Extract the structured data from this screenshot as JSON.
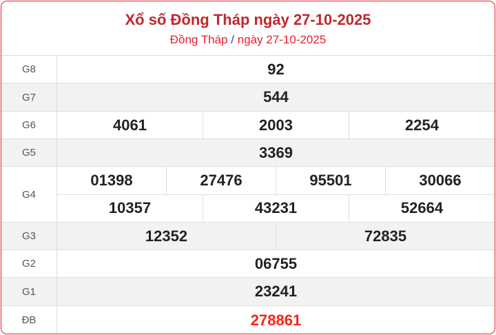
{
  "header": {
    "title": "Xổ số Đồng Tháp ngày 27-10-2025",
    "breadcrumb": {
      "province": "Đồng Tháp",
      "separator": "/",
      "date": "ngày 27-10-2025"
    }
  },
  "prizes": [
    {
      "label": "G8",
      "rows": [
        [
          "92"
        ]
      ]
    },
    {
      "label": "G7",
      "rows": [
        [
          "544"
        ]
      ]
    },
    {
      "label": "G6",
      "rows": [
        [
          "4061",
          "2003",
          "2254"
        ]
      ]
    },
    {
      "label": "G5",
      "rows": [
        [
          "3369"
        ]
      ]
    },
    {
      "label": "G4",
      "rows": [
        [
          "01398",
          "27476",
          "95501",
          "30066"
        ],
        [
          "10357",
          "43231",
          "52664"
        ]
      ]
    },
    {
      "label": "G3",
      "rows": [
        [
          "12352",
          "72835"
        ]
      ]
    },
    {
      "label": "G2",
      "rows": [
        [
          "06755"
        ]
      ]
    },
    {
      "label": "G1",
      "rows": [
        [
          "23241"
        ]
      ]
    },
    {
      "label": "ĐB",
      "rows": [
        [
          "278861"
        ]
      ]
    }
  ],
  "colors": {
    "accent": "#e8202a",
    "title": "#c0282d",
    "special": "#f2261b"
  }
}
